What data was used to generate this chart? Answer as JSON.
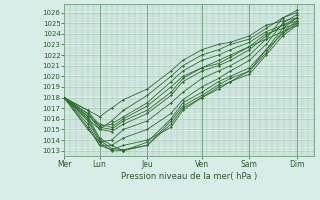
{
  "background_color": "#d8ede8",
  "grid_color": "#a8c8b8",
  "line_color": "#2d6e2d",
  "yticks": [
    1013,
    1014,
    1015,
    1016,
    1017,
    1018,
    1019,
    1020,
    1021,
    1022,
    1023,
    1024,
    1025,
    1026
  ],
  "ylim": [
    1012.5,
    1026.8
  ],
  "xlabel": "Pression niveau de la mer( hPa )",
  "xtick_labels": [
    "Mer",
    "Lun",
    "Jeu",
    "Ven",
    "Sam",
    "Dim"
  ],
  "xtick_positions": [
    0,
    1.5,
    3.5,
    5.8,
    7.8,
    9.8
  ],
  "xlim": [
    0,
    10.5
  ],
  "series": [
    [
      0.0,
      1018.0,
      1.0,
      1016.2,
      1.5,
      1014.2,
      2.0,
      1013.5,
      2.5,
      1013.0,
      3.5,
      1013.8,
      4.5,
      1016.0,
      5.0,
      1017.5,
      5.8,
      1018.5,
      6.5,
      1019.5,
      7.0,
      1020.0,
      7.8,
      1020.8,
      8.5,
      1022.5,
      9.2,
      1024.0,
      9.8,
      1025.0
    ],
    [
      0.0,
      1018.0,
      1.0,
      1016.0,
      1.5,
      1014.0,
      2.0,
      1013.2,
      2.5,
      1013.1,
      3.5,
      1013.5,
      4.5,
      1015.8,
      5.0,
      1017.2,
      5.8,
      1018.2,
      6.5,
      1019.2,
      7.0,
      1019.8,
      7.8,
      1020.5,
      8.5,
      1022.2,
      9.2,
      1024.2,
      9.8,
      1025.2
    ],
    [
      0.0,
      1018.0,
      1.0,
      1015.8,
      1.5,
      1013.8,
      2.0,
      1013.0,
      2.5,
      1013.0,
      3.5,
      1013.5,
      4.5,
      1015.5,
      5.0,
      1017.0,
      5.8,
      1018.0,
      6.5,
      1019.0,
      7.0,
      1019.5,
      7.8,
      1020.2,
      8.5,
      1022.0,
      9.2,
      1023.8,
      9.8,
      1024.8
    ],
    [
      0.0,
      1018.0,
      1.0,
      1015.5,
      1.5,
      1013.5,
      2.0,
      1013.1,
      2.5,
      1013.5,
      3.5,
      1014.0,
      4.5,
      1015.2,
      5.0,
      1016.8,
      5.8,
      1018.0,
      6.5,
      1018.8,
      7.0,
      1019.5,
      7.8,
      1020.5,
      8.5,
      1022.5,
      9.2,
      1024.5,
      9.8,
      1025.5
    ],
    [
      0.0,
      1018.0,
      1.0,
      1015.2,
      1.5,
      1013.5,
      2.0,
      1013.5,
      2.5,
      1014.2,
      3.5,
      1015.0,
      4.5,
      1016.5,
      5.0,
      1017.8,
      5.8,
      1019.0,
      6.5,
      1019.8,
      7.0,
      1020.5,
      7.8,
      1021.5,
      8.5,
      1023.0,
      9.2,
      1025.0,
      9.8,
      1025.8
    ],
    [
      0.0,
      1018.0,
      1.0,
      1015.0,
      1.5,
      1013.8,
      2.0,
      1014.0,
      2.5,
      1015.0,
      3.5,
      1015.8,
      4.5,
      1017.5,
      5.0,
      1018.5,
      5.8,
      1019.8,
      6.5,
      1020.5,
      7.0,
      1021.0,
      7.8,
      1022.0,
      8.5,
      1023.5,
      9.2,
      1025.5,
      9.8,
      1026.0
    ],
    [
      0.0,
      1018.0,
      1.0,
      1016.5,
      1.5,
      1015.0,
      2.0,
      1014.8,
      2.5,
      1015.5,
      3.5,
      1016.5,
      4.5,
      1018.2,
      5.0,
      1019.5,
      5.8,
      1020.5,
      6.5,
      1021.0,
      7.0,
      1021.5,
      7.8,
      1022.5,
      8.5,
      1023.8,
      9.2,
      1024.8,
      9.8,
      1025.5
    ],
    [
      0.0,
      1018.0,
      1.0,
      1016.8,
      1.5,
      1015.2,
      2.0,
      1015.0,
      2.5,
      1015.8,
      3.5,
      1016.8,
      4.5,
      1018.5,
      5.0,
      1019.8,
      5.8,
      1020.8,
      6.5,
      1021.2,
      7.0,
      1021.8,
      7.8,
      1022.8,
      8.5,
      1024.0,
      9.2,
      1024.5,
      9.8,
      1025.0
    ],
    [
      0.0,
      1018.0,
      1.0,
      1016.5,
      1.5,
      1015.5,
      2.0,
      1015.2,
      2.5,
      1016.0,
      3.5,
      1017.2,
      4.5,
      1019.0,
      5.0,
      1020.0,
      5.8,
      1020.8,
      6.5,
      1021.5,
      7.0,
      1022.0,
      7.8,
      1022.8,
      8.5,
      1023.5,
      9.2,
      1024.2,
      9.8,
      1024.8
    ],
    [
      0.0,
      1018.0,
      1.0,
      1016.3,
      1.5,
      1015.3,
      2.0,
      1015.5,
      2.5,
      1016.2,
      3.5,
      1017.5,
      4.5,
      1019.5,
      5.0,
      1020.5,
      5.8,
      1021.5,
      6.5,
      1022.0,
      7.0,
      1022.5,
      7.8,
      1023.2,
      8.5,
      1024.2,
      9.2,
      1024.8,
      9.8,
      1025.2
    ],
    [
      0.0,
      1018.0,
      1.0,
      1016.0,
      1.5,
      1015.0,
      2.0,
      1015.8,
      2.5,
      1016.8,
      3.5,
      1018.2,
      4.5,
      1020.0,
      5.0,
      1021.0,
      5.8,
      1022.0,
      6.5,
      1022.5,
      7.0,
      1023.0,
      7.8,
      1023.5,
      8.5,
      1024.5,
      9.2,
      1025.5,
      9.8,
      1026.2
    ],
    [
      0.0,
      1018.0,
      1.0,
      1016.8,
      1.5,
      1016.2,
      2.0,
      1017.0,
      2.5,
      1017.8,
      3.5,
      1018.8,
      4.5,
      1020.5,
      5.0,
      1021.5,
      5.8,
      1022.5,
      6.5,
      1023.0,
      7.0,
      1023.2,
      7.8,
      1023.8,
      8.5,
      1024.8,
      9.2,
      1025.2,
      9.8,
      1025.5
    ]
  ]
}
